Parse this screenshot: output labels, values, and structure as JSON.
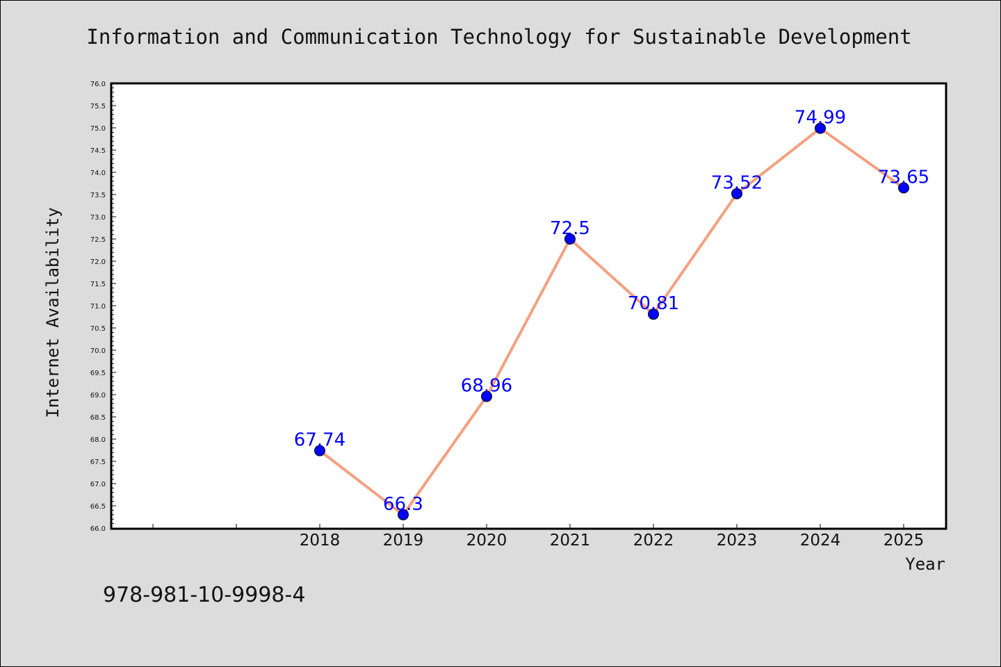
{
  "chart_data": {
    "type": "line",
    "title": "Information and Communication Technology for Sustainable Development",
    "xlabel": "Year",
    "ylabel": "Internet Availability",
    "x": [
      "2018",
      "2019",
      "2020",
      "2021",
      "2022",
      "2023",
      "2024",
      "2025"
    ],
    "series": [
      {
        "values": [
          67.74,
          66.3,
          68.96,
          72.5,
          70.81,
          73.52,
          74.99,
          73.65
        ]
      }
    ],
    "data_labels": [
      "67.74",
      "66.3",
      "68.96",
      "72.5",
      "70.81",
      "73.52",
      "74.99",
      "73.65"
    ],
    "ylim": [
      66.0,
      76.0
    ],
    "yticks": [
      "66.0",
      "66.5",
      "67.0",
      "67.5",
      "68.0",
      "68.5",
      "69.0",
      "69.5",
      "70.0",
      "70.5",
      "71.0",
      "71.5",
      "72.0",
      "72.5",
      "73.0",
      "73.5",
      "74.0",
      "74.5",
      "75.0",
      "75.5",
      "76.0"
    ],
    "grid": false,
    "line_color": "#f4a080",
    "marker_color": "#0000ff",
    "label_color": "#0000ff"
  },
  "footer": {
    "isbn": "978-981-10-9998-4"
  }
}
